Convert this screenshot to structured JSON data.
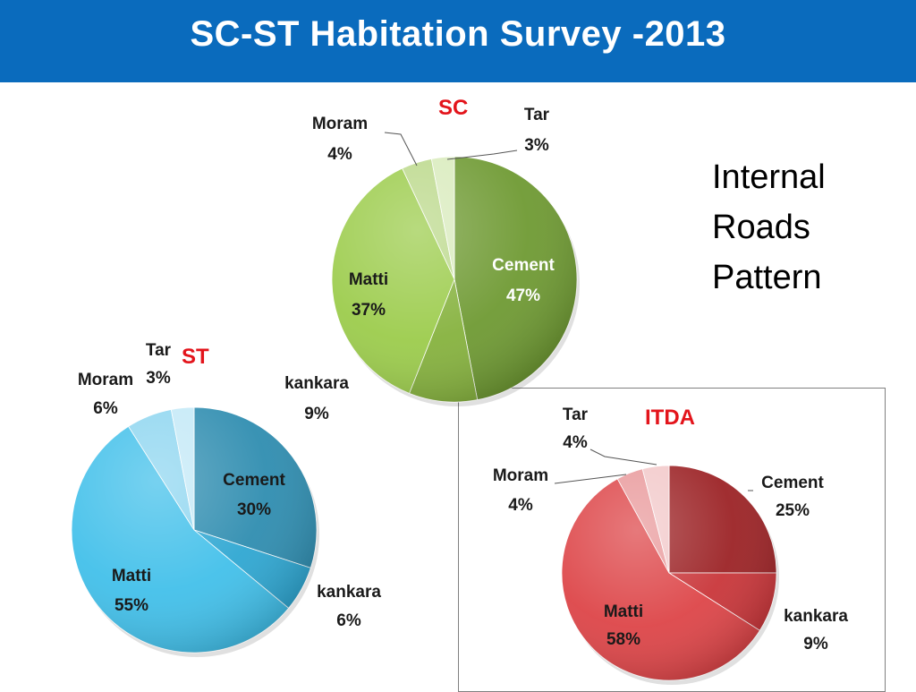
{
  "slide": {
    "title": "SC-ST Habitation Survey -2013",
    "side_note": [
      "Internal",
      "Roads",
      "Pattern"
    ]
  },
  "chart_data": [
    {
      "type": "pie",
      "title": "SC",
      "slices": [
        {
          "label": "Cement",
          "value": 47,
          "display": "47%",
          "color": "#6f9a33"
        },
        {
          "label": "kankara",
          "value": 9,
          "display": "9%",
          "color": "#86b23e"
        },
        {
          "label": "Matti",
          "value": 37,
          "display": "37%",
          "color": "#9ccc4c"
        },
        {
          "label": "Moram",
          "value": 4,
          "display": "4%",
          "color": "#bcd98c"
        },
        {
          "label": "Tar",
          "value": 3,
          "display": "3%",
          "color": "#d9ebbd"
        }
      ]
    },
    {
      "type": "pie",
      "title": "ST",
      "slices": [
        {
          "label": "Cement",
          "value": 30,
          "display": "30%",
          "color": "#2f8db0"
        },
        {
          "label": "kankara",
          "value": 6,
          "display": "6%",
          "color": "#2fa7d2"
        },
        {
          "label": "Matti",
          "value": 55,
          "display": "55%",
          "color": "#42c0ea"
        },
        {
          "label": "Moram",
          "value": 6,
          "display": "6%",
          "color": "#8fd6f0"
        },
        {
          "label": "Tar",
          "value": 3,
          "display": "3%",
          "color": "#c4e9f7"
        }
      ]
    },
    {
      "type": "pie",
      "title": "ITDA",
      "slices": [
        {
          "label": "Cement",
          "value": 25,
          "display": "25%",
          "color": "#9c2326"
        },
        {
          "label": "kankara",
          "value": 9,
          "display": "9%",
          "color": "#c9363a"
        },
        {
          "label": "Matti",
          "value": 58,
          "display": "58%",
          "color": "#dd4548"
        },
        {
          "label": "Moram",
          "value": 4,
          "display": "4%",
          "color": "#e99a9c"
        },
        {
          "label": "Tar",
          "value": 4,
          "display": "4%",
          "color": "#f2c9ca"
        }
      ]
    }
  ]
}
